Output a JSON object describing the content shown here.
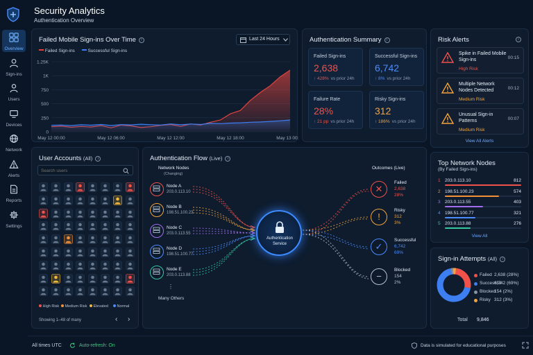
{
  "app": {
    "title": "Security Analytics",
    "subtitle": "Authentication Overview"
  },
  "sidebar": {
    "items": [
      {
        "label": "Overview",
        "icon": "grid-icon",
        "active": true
      },
      {
        "label": "Sign-ins",
        "icon": "user-icon"
      },
      {
        "label": "Users",
        "icon": "users-icon"
      },
      {
        "label": "Devices",
        "icon": "device-icon"
      },
      {
        "label": "Network",
        "icon": "globe-icon"
      },
      {
        "label": "Alerts",
        "icon": "warning-icon"
      },
      {
        "label": "Reports",
        "icon": "document-icon"
      },
      {
        "label": "Settings",
        "icon": "gear-icon"
      }
    ]
  },
  "chart_panel": {
    "title": "Failed Mobile Sign-ins Over Time",
    "range_label": "Last 24 Hours",
    "legend": [
      "Failed Sign-ins",
      "Successful Sign-ins"
    ]
  },
  "chart_data": {
    "type": "area",
    "title": "Failed Mobile Sign-ins Over Time",
    "x_tick_labels": [
      "May 12 00:00",
      "May 12 06:00",
      "May 12 12:00",
      "May 12 18:00",
      "May 13 00:00"
    ],
    "y_tick_labels": [
      "0",
      "250",
      "500",
      "750",
      "1K",
      "1.25K"
    ],
    "ylim": [
      0,
      1250
    ],
    "grid": true,
    "legend_position": "top-left",
    "x_hours": [
      0,
      1,
      2,
      3,
      4,
      5,
      6,
      7,
      8,
      9,
      10,
      11,
      12,
      13,
      14,
      15,
      16,
      17,
      18,
      19,
      20,
      21,
      22,
      23,
      24
    ],
    "series": [
      {
        "name": "Failed Sign-ins",
        "color": "#e0443e",
        "values": [
          90,
          100,
          80,
          95,
          85,
          110,
          70,
          120,
          105,
          75,
          90,
          115,
          130,
          95,
          140,
          120,
          170,
          210,
          320,
          380,
          560,
          700,
          820,
          980,
          1100
        ]
      },
      {
        "name": "Successful Sign-ins",
        "color": "#3d7ef0",
        "values": [
          115,
          120,
          110,
          125,
          118,
          130,
          112,
          128,
          122,
          135,
          126,
          120,
          140,
          125,
          138,
          130,
          150,
          145,
          155,
          160,
          170,
          175,
          185,
          195,
          210
        ]
      }
    ]
  },
  "summary": {
    "title": "Authentication Summary",
    "cards": [
      {
        "title": "Failed Sign-ins",
        "value": "2,638",
        "delta": "↑ 428%",
        "period": "vs prior 24h",
        "color": "#f0524a"
      },
      {
        "title": "Successful Sign-ins",
        "value": "6,742",
        "delta": "↑ 8%",
        "period": "vs prior 24h",
        "color": "#4c8cff"
      },
      {
        "title": "Failure Rate",
        "value": "28%",
        "delta": "↑ 21 pp",
        "period": "vs prior 24h",
        "color": "#f0524a"
      },
      {
        "title": "Risky Sign-ins",
        "value": "312",
        "delta": "↑ 186%",
        "period": "vs prior 24h",
        "color": "#f4a43a"
      }
    ]
  },
  "alerts": {
    "title": "Risk Alerts",
    "items": [
      {
        "text": "Spike in Failed Mobile Sign-ins",
        "level": "High Risk",
        "time": "00:15",
        "color": "#f0524a"
      },
      {
        "text": "Multiple Network Nodes Detected",
        "level": "Medium Risk",
        "time": "00:12",
        "color": "#f4a43a"
      },
      {
        "text": "Unusual Sign-in Patterns",
        "level": "Medium Risk",
        "time": "00:07",
        "color": "#f4a43a"
      }
    ],
    "view_all": "View All Alerts"
  },
  "users": {
    "title": "User Accounts",
    "scope": "(All)",
    "search_placeholder": "Search users",
    "legend": [
      {
        "label": "High Risk",
        "color": "#f0524a"
      },
      {
        "label": "Medium Risk",
        "color": "#f4923a"
      },
      {
        "label": "Elevated",
        "color": "#f4b83a"
      },
      {
        "label": "Normal",
        "color": "#4c8cff"
      }
    ],
    "footer": "Showing 1–48 of many",
    "grid_risk": [
      "n",
      "n",
      "n",
      "h",
      "n",
      "n",
      "n",
      "h",
      "n",
      "n",
      "n",
      "n",
      "n",
      "n",
      "e",
      "n",
      "h",
      "n",
      "n",
      "n",
      "n",
      "n",
      "n",
      "n",
      "n",
      "n",
      "n",
      "n",
      "n",
      "n",
      "n",
      "n",
      "n",
      "n",
      "m",
      "n",
      "n",
      "n",
      "n",
      "n",
      "n",
      "n",
      "n",
      "n",
      "n",
      "n",
      "n",
      "n",
      "n",
      "n",
      "n",
      "n",
      "n",
      "n",
      "n",
      "n",
      "n",
      "e",
      "n",
      "n",
      "n",
      "n",
      "n",
      "h",
      "n",
      "n",
      "n",
      "n",
      "n",
      "n",
      "n",
      "n"
    ]
  },
  "flow": {
    "title": "Authentication Flow",
    "scope": "(Live)",
    "nodes_title": "Network Nodes",
    "nodes_sub": "(Changing)",
    "nodes": [
      {
        "name": "Node A",
        "ip": "203.0.113.10",
        "color": "#f0524a"
      },
      {
        "name": "Node B",
        "ip": "198.51.100.23",
        "color": "#f4a43a"
      },
      {
        "name": "Node C",
        "ip": "203.0.113.55",
        "color": "#a36cf0"
      },
      {
        "name": "Node D",
        "ip": "198.51.100.77",
        "color": "#4c8cff"
      },
      {
        "name": "Node E",
        "ip": "203.0.113.88",
        "color": "#36c9a0"
      }
    ],
    "more_label": "Many Others",
    "center_label": "Authentication Service",
    "outcomes_title": "Outcomes",
    "outcomes_scope": "(Live)",
    "outcomes": [
      {
        "label": "Failed",
        "count": "2,638",
        "pct": "28%",
        "color": "#f0524a",
        "glyph": "✕",
        "icon": "x-circle-icon"
      },
      {
        "label": "Risky",
        "count": "312",
        "pct": "3%",
        "color": "#f4a43a",
        "glyph": "!",
        "icon": "exclamation-circle-icon"
      },
      {
        "label": "Successful",
        "count": "6,742",
        "pct": "69%",
        "color": "#4c8cff",
        "glyph": "✓",
        "icon": "check-circle-icon"
      },
      {
        "label": "Blocked",
        "count": "154",
        "pct": "2%",
        "color": "#b8c2cf",
        "glyph": "−",
        "icon": "minus-circle-icon"
      }
    ]
  },
  "top_nodes": {
    "title": "Top Network Nodes",
    "subtitle": "(By Failed Sign-ins)",
    "view_all": "View All",
    "rows": [
      {
        "rank": "1",
        "ip": "203.0.113.10",
        "count": "812",
        "color": "#f0524a",
        "share": 1.0
      },
      {
        "rank": "2",
        "ip": "198.51.100.23",
        "count": "574",
        "color": "#f4923a",
        "share": 0.71
      },
      {
        "rank": "3",
        "ip": "203.0.113.55",
        "count": "403",
        "color": "#a36cf0",
        "share": 0.5
      },
      {
        "rank": "4",
        "ip": "198.51.100.77",
        "count": "321",
        "color": "#4c8cff",
        "share": 0.4
      },
      {
        "rank": "5",
        "ip": "203.0.113.88",
        "count": "276",
        "color": "#36c9a0",
        "share": 0.34
      }
    ]
  },
  "attempts": {
    "title": "Sign-in Attempts",
    "scope": "(All)",
    "total_label": "Total",
    "total": "9,846",
    "rows": [
      {
        "label": "Failed",
        "value": "2,638 (28%)",
        "color": "#f0524a",
        "share": 0.28
      },
      {
        "label": "Successful",
        "value": "6,742 (69%)",
        "color": "#3d7ef0",
        "share": 0.69
      },
      {
        "label": "Blocked",
        "value": "154 (2%)",
        "color": "#8a93a3",
        "share": 0.02
      },
      {
        "label": "Risky",
        "value": "312 (3%)",
        "color": "#f4a43a",
        "share": 0.03
      }
    ]
  },
  "footer": {
    "timezone": "All times UTC",
    "refresh": "Auto-refresh: On",
    "note": "Data is simulated for educational purposes"
  }
}
